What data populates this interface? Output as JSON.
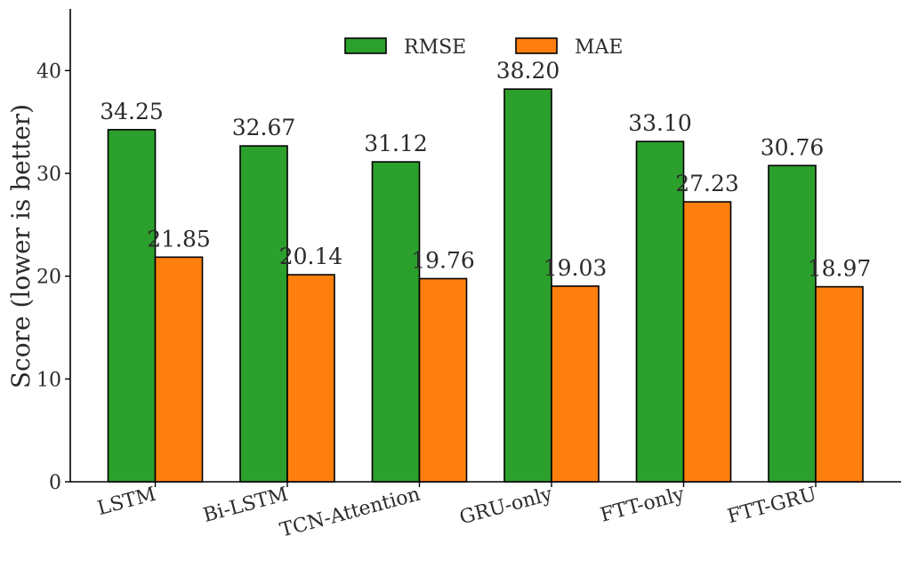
{
  "chart_data": {
    "type": "bar",
    "title": "",
    "xlabel": "",
    "ylabel": "Score (lower is better)",
    "ylim": [
      0,
      46
    ],
    "yticks": [
      0,
      10,
      20,
      30,
      40
    ],
    "grid": false,
    "legend_placement": "top-center",
    "categories": [
      "LSTM",
      "Bi-LSTM",
      "TCN-Attention",
      "GRU-only",
      "FTT-only",
      "FTT-GRU"
    ],
    "series": [
      {
        "name": "RMSE",
        "color": "#2ca02c",
        "values": [
          34.25,
          32.67,
          31.12,
          38.2,
          33.1,
          30.76
        ]
      },
      {
        "name": "MAE",
        "color": "#ff7f0e",
        "values": [
          21.85,
          20.14,
          19.76,
          19.03,
          27.23,
          18.97
        ]
      }
    ]
  }
}
